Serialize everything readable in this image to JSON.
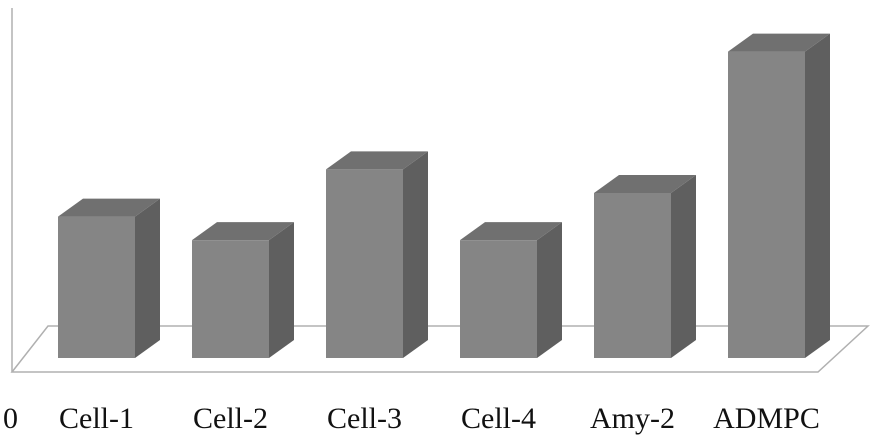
{
  "chart_data": {
    "type": "bar",
    "style": "3d-column",
    "categories": [
      "Cell-1",
      "Cell-2",
      "Cell-3",
      "Cell-4",
      "Amy-2",
      "ADMPC"
    ],
    "values": [
      30,
      25,
      40,
      25,
      35,
      65
    ],
    "axis_tick_labels": [
      "0"
    ],
    "ylim": [
      0,
      70
    ],
    "grid": false,
    "legend": "none",
    "colors": {
      "front": "#858585",
      "side": "#5f5f5f",
      "top": "#707070",
      "axis": "#b0b0b0"
    }
  }
}
